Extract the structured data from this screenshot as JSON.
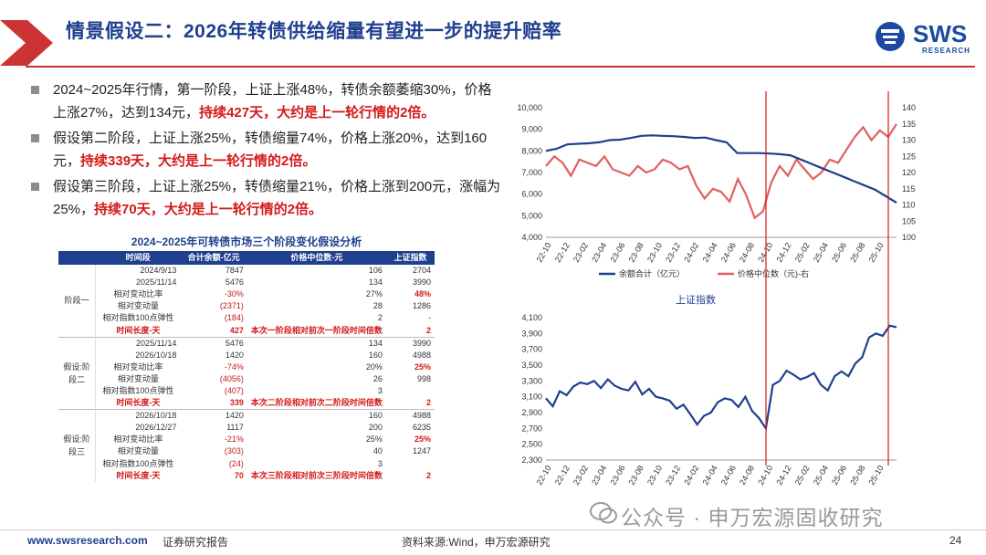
{
  "header": {
    "title": "情景假设二：2026年转债供给缩量有望进一步的提升赔率",
    "logo_text": "SWS",
    "logo_sub": "RESEARCH"
  },
  "bullets": [
    {
      "plain": "2024~2025年行情，第一阶段，上证上涨48%，转债余额萎缩30%，价格上涨27%，达到134元，",
      "red": "持续427天，大约是上一轮行情的2倍。"
    },
    {
      "plain": "假设第二阶段，上证上涨25%，转债缩量74%，价格上涨20%，达到160元，",
      "red": "持续339天，大约是上一轮行情的2倍。"
    },
    {
      "plain": "假设第三阶段，上证上涨25%，转债缩量21%，价格上涨到200元，涨幅为25%，",
      "red": "持续70天，大约是上一轮行情的2倍。"
    }
  ],
  "table": {
    "title": "2024~2025年可转债市场三个阶段变化假设分析",
    "headers": [
      "",
      "时间段",
      "合计余额-亿元",
      "价格中位数-元",
      "上证指数"
    ],
    "stages": [
      {
        "stage": "阶段一",
        "rows": [
          [
            "2024/9/13",
            "7847",
            "106",
            "2704"
          ],
          [
            "2025/11/14",
            "5476",
            "134",
            "3990"
          ],
          [
            "相对变动比率",
            "-30%",
            "27%",
            "48%"
          ],
          [
            "相对变动量",
            "(2371)",
            "28",
            "1286"
          ],
          [
            "相对指数100点弹性",
            "(184)",
            "2",
            "-"
          ]
        ],
        "duration": [
          "时间长度-天",
          "427",
          "本次一阶段相对前次一阶段时间倍数",
          "2"
        ]
      },
      {
        "stage": "假设:阶段二",
        "rows": [
          [
            "2025/11/14",
            "5476",
            "134",
            "3990"
          ],
          [
            "2026/10/18",
            "1420",
            "160",
            "4988"
          ],
          [
            "相对变动比率",
            "-74%",
            "20%",
            "25%"
          ],
          [
            "相对变动量",
            "(4056)",
            "26",
            "998"
          ],
          [
            "相对指数100点弹性",
            "(407)",
            "3",
            ""
          ]
        ],
        "duration": [
          "时间长度-天",
          "339",
          "本次二阶段相对前次二阶段时间倍数",
          "2"
        ]
      },
      {
        "stage": "假设:阶段三",
        "rows": [
          [
            "2026/10/18",
            "1420",
            "160",
            "4988"
          ],
          [
            "2026/12/27",
            "1117",
            "200",
            "6235"
          ],
          [
            "相对变动比率",
            "-21%",
            "25%",
            "25%"
          ],
          [
            "相对变动量",
            "(303)",
            "40",
            "1247"
          ],
          [
            "相对指数100点弹性",
            "(24)",
            "3",
            ""
          ]
        ],
        "duration": [
          "时间长度-天",
          "70",
          "本次三阶段相对前次三阶段时间倍数",
          "2"
        ]
      }
    ]
  },
  "chart_data": [
    {
      "type": "line",
      "title": "",
      "x_ticks": [
        "22-10",
        "22-12",
        "23-02",
        "23-04",
        "23-06",
        "23-08",
        "23-10",
        "23-12",
        "24-02",
        "24-04",
        "24-06",
        "24-08",
        "24-10",
        "24-12",
        "25-02",
        "25-04",
        "25-06",
        "25-08",
        "25-10"
      ],
      "left_axis": {
        "ticks": [
          "10,000",
          "9,000",
          "8,000",
          "7,000",
          "6,000",
          "5,000",
          "4,000"
        ],
        "range": [
          4000,
          10000
        ]
      },
      "right_axis": {
        "ticks": [
          "140",
          "135",
          "130",
          "125",
          "120",
          "115",
          "110",
          "105",
          "100"
        ],
        "range": [
          100,
          140
        ]
      },
      "series": [
        {
          "name": "余额合计（亿元）",
          "axis": "left",
          "color": "#1f3f8f",
          "values": [
            8000,
            8100,
            8300,
            8330,
            8350,
            8400,
            8500,
            8520,
            8600,
            8700,
            8720,
            8700,
            8680,
            8650,
            8600,
            8620,
            8500,
            8400,
            7900,
            7900,
            7900,
            7880,
            7850,
            7800,
            7600,
            7400,
            7200,
            7000,
            6800,
            6600,
            6400,
            6200,
            5900,
            5600
          ]
        },
        {
          "name": "价格中位数（元)-右",
          "axis": "right",
          "color": "#e06060",
          "values": [
            122,
            125,
            123,
            119,
            124,
            123,
            122,
            125,
            121,
            120,
            119,
            122,
            120,
            121,
            124,
            123,
            121,
            122,
            116,
            112,
            115,
            114,
            111,
            118,
            113,
            106,
            108,
            117,
            122,
            119,
            124,
            121,
            118,
            120,
            124,
            123,
            127,
            131,
            134,
            130,
            133,
            131,
            135
          ]
        }
      ],
      "xlabel": "",
      "ylabel": ""
    },
    {
      "type": "line",
      "title": "上证指数",
      "x_ticks": [
        "22-10",
        "22-12",
        "23-02",
        "23-04",
        "23-06",
        "23-08",
        "23-10",
        "23-12",
        "24-02",
        "24-04",
        "24-06",
        "24-08",
        "24-10",
        "24-12",
        "25-02",
        "25-04",
        "25-06",
        "25-08",
        "25-10"
      ],
      "y_axis": {
        "ticks": [
          "4,100",
          "3,900",
          "3,700",
          "3,500",
          "3,300",
          "3,100",
          "2,900",
          "2,700",
          "2,500",
          "2,300"
        ],
        "range": [
          2300,
          4100
        ]
      },
      "series": [
        {
          "name": "",
          "color": "#1f3f8f",
          "values": [
            3080,
            2980,
            3170,
            3120,
            3230,
            3280,
            3260,
            3300,
            3210,
            3320,
            3240,
            3200,
            3180,
            3290,
            3130,
            3200,
            3100,
            3080,
            3050,
            2950,
            3000,
            2880,
            2750,
            2860,
            2900,
            3030,
            3080,
            3060,
            2970,
            3100,
            2920,
            2830,
            2700,
            3250,
            3300,
            3430,
            3380,
            3320,
            3350,
            3400,
            3250,
            3180,
            3360,
            3420,
            3360,
            3520,
            3600,
            3850,
            3900,
            3870,
            4000,
            3980
          ]
        }
      ],
      "xlabel": "",
      "ylabel": ""
    }
  ],
  "annotations": {
    "vlines": [
      "24-09",
      "25-11"
    ]
  },
  "watermark": "公众号 · 申万宏源固收研究",
  "footer": {
    "url": "www.swsresearch.com",
    "report": "证券研究报告",
    "source": "资料来源:Wind，申万宏源研究",
    "page": "24"
  },
  "colors": {
    "brand": "#1f3f8f",
    "accent_red": "#d41a1a",
    "line_red": "#e06060"
  }
}
